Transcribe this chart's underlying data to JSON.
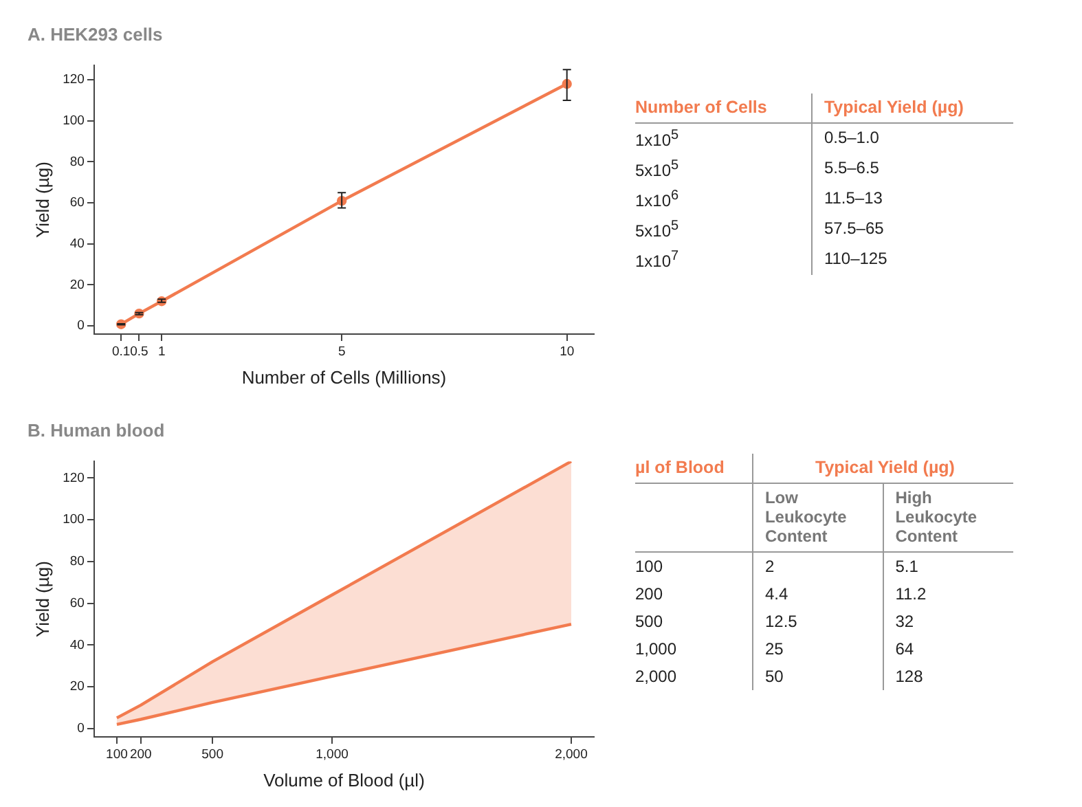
{
  "chart_data": [
    {
      "type": "line",
      "title": "A. HEK293 cells",
      "xlabel": "Number of Cells (Millions)",
      "ylabel": "Yield (µg)",
      "x": [
        0.1,
        0.5,
        1,
        5,
        10
      ],
      "series": [
        {
          "color": "#f27b4f",
          "values": [
            0.8,
            6,
            12,
            61,
            118
          ],
          "errors": [
            [
              0.5,
              1.0
            ],
            [
              5.5,
              6.5
            ],
            [
              11.5,
              13
            ],
            [
              57.5,
              65
            ],
            [
              110,
              125
            ]
          ]
        }
      ],
      "xlim": [
        -0.5,
        10.6
      ],
      "xticks": [
        0.1,
        0.5,
        1,
        5,
        10
      ],
      "ylim": [
        -4,
        127
      ],
      "yticks": [
        0,
        20,
        40,
        60,
        80,
        100,
        120
      ],
      "marker": "circle",
      "grid": false,
      "legend": false
    },
    {
      "type": "other",
      "categories": [
        "Number of Cells",
        "Typical Yield (µg)"
      ],
      "cell_labels": [
        [
          "1x10$^{5}$",
          "0.5–1.0"
        ],
        [
          "5x10$^{5}$",
          "5.5–6.5"
        ],
        [
          "1x10$^{6}$",
          "11.5–13"
        ],
        [
          "5x10$^{5}$",
          "57.5–65"
        ],
        [
          "1x10$^{7}$",
          "110–125"
        ]
      ]
    },
    {
      "type": "line",
      "title": "B. Human blood",
      "xlabel": "Volume of Blood (µl)",
      "ylabel": "Yield (µg)",
      "x": [
        100,
        200,
        500,
        1000,
        2000
      ],
      "series": [
        {
          "color": "#f27b4f",
          "values": [
            2,
            4.4,
            12.5,
            25,
            50
          ]
        },
        {
          "color": "#f27b4f",
          "values": [
            5.1,
            11.2,
            32,
            64,
            128
          ],
          "lower": [
            2,
            4.4,
            12.5,
            25,
            50
          ],
          "upper": [
            5.1,
            11.2,
            32,
            64,
            128
          ]
        }
      ],
      "xlim": [
        5,
        2095
      ],
      "xticks": [
        100,
        200,
        500,
        {
          "value": 1000,
          "label": "1,000"
        },
        {
          "value": 2000,
          "label": "2,000"
        }
      ],
      "ylim": [
        -4,
        128
      ],
      "yticks": [
        0,
        20,
        40,
        60,
        80,
        100,
        120
      ],
      "marker": "none",
      "grid": false,
      "legend": false
    },
    {
      "type": "other",
      "categories": [
        "µl of Blood",
        "Typical Yield (µg)"
      ],
      "cell_labels": [
        [
          null,
          "Low Leukocyte Content",
          "High Leukocyte Content"
        ],
        [
          "100",
          "2",
          "5.1"
        ],
        [
          "200",
          "4.4",
          "11.2"
        ],
        [
          "500",
          "12.5",
          "32"
        ],
        [
          "1,000",
          "25",
          "64"
        ],
        [
          "2,000",
          "50",
          "128"
        ]
      ]
    }
  ]
}
